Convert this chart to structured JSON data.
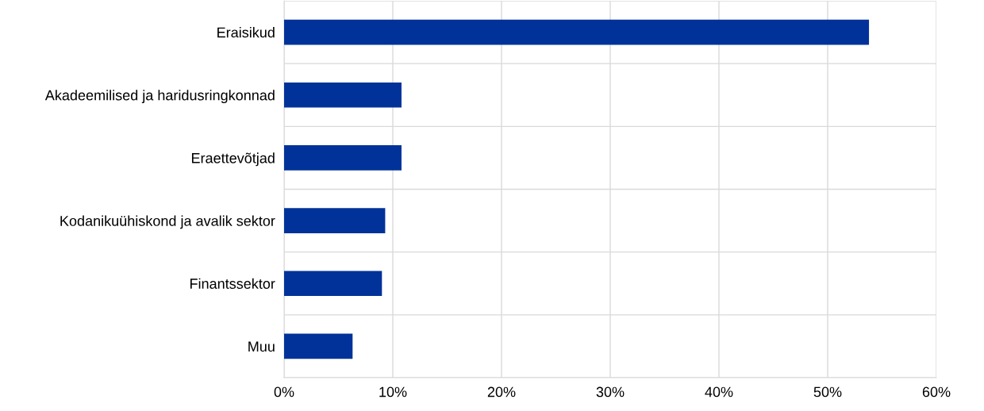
{
  "chart_data": {
    "type": "bar",
    "orientation": "horizontal",
    "categories": [
      "Eraisikud",
      "Akadeemilised ja haridusringkonnad",
      "Eraettevõtjad",
      "Kodanikuühiskond ja avalik sektor",
      "Finantssektor",
      "Muu"
    ],
    "values": [
      53.8,
      10.8,
      10.8,
      9.3,
      9.0,
      6.3
    ],
    "color": "#003299",
    "xlim": [
      0,
      60
    ],
    "xticks": [
      {
        "value": 0,
        "label": "0%"
      },
      {
        "value": 10,
        "label": "10%"
      },
      {
        "value": 20,
        "label": "20%"
      },
      {
        "value": 30,
        "label": "30%"
      },
      {
        "value": 40,
        "label": "40%"
      },
      {
        "value": 50,
        "label": "50%"
      },
      {
        "value": 60,
        "label": "60%"
      }
    ],
    "grid": true,
    "legend": false
  }
}
